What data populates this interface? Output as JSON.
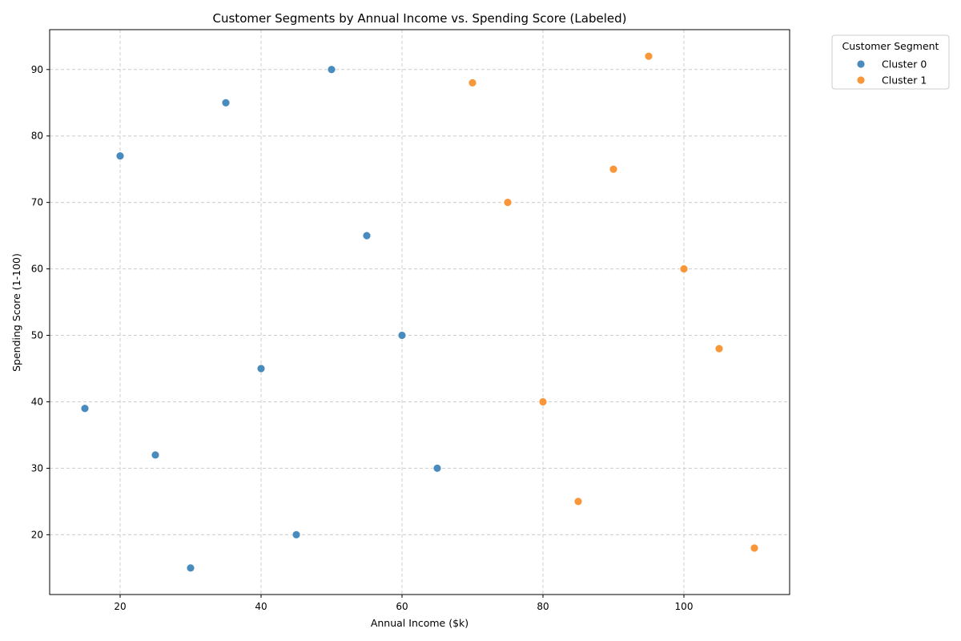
{
  "chart_data": {
    "type": "scatter",
    "title": "Customer Segments by Annual Income vs. Spending Score (Labeled)",
    "xlabel": "Annual Income ($k)",
    "ylabel": "Spending Score (1-100)",
    "xlim": [
      10,
      115
    ],
    "ylim": [
      11,
      96
    ],
    "xticks": [
      20,
      40,
      60,
      80,
      100
    ],
    "yticks": [
      20,
      30,
      40,
      50,
      60,
      70,
      80,
      90
    ],
    "grid": true,
    "legend": {
      "title": "Customer Segment",
      "placement": "outside-top-right"
    },
    "series": [
      {
        "name": "Cluster 0",
        "color": "#4a8bbe",
        "points": [
          {
            "x": 15,
            "y": 39
          },
          {
            "x": 20,
            "y": 77
          },
          {
            "x": 25,
            "y": 32
          },
          {
            "x": 30,
            "y": 15
          },
          {
            "x": 35,
            "y": 85
          },
          {
            "x": 40,
            "y": 45
          },
          {
            "x": 45,
            "y": 20
          },
          {
            "x": 50,
            "y": 90
          },
          {
            "x": 55,
            "y": 65
          },
          {
            "x": 60,
            "y": 50
          },
          {
            "x": 65,
            "y": 30
          }
        ]
      },
      {
        "name": "Cluster 1",
        "color": "#f8963a",
        "points": [
          {
            "x": 70,
            "y": 88
          },
          {
            "x": 75,
            "y": 70
          },
          {
            "x": 80,
            "y": 40
          },
          {
            "x": 85,
            "y": 25
          },
          {
            "x": 90,
            "y": 75
          },
          {
            "x": 95,
            "y": 92
          },
          {
            "x": 100,
            "y": 60
          },
          {
            "x": 105,
            "y": 48
          },
          {
            "x": 110,
            "y": 18
          }
        ]
      }
    ]
  }
}
